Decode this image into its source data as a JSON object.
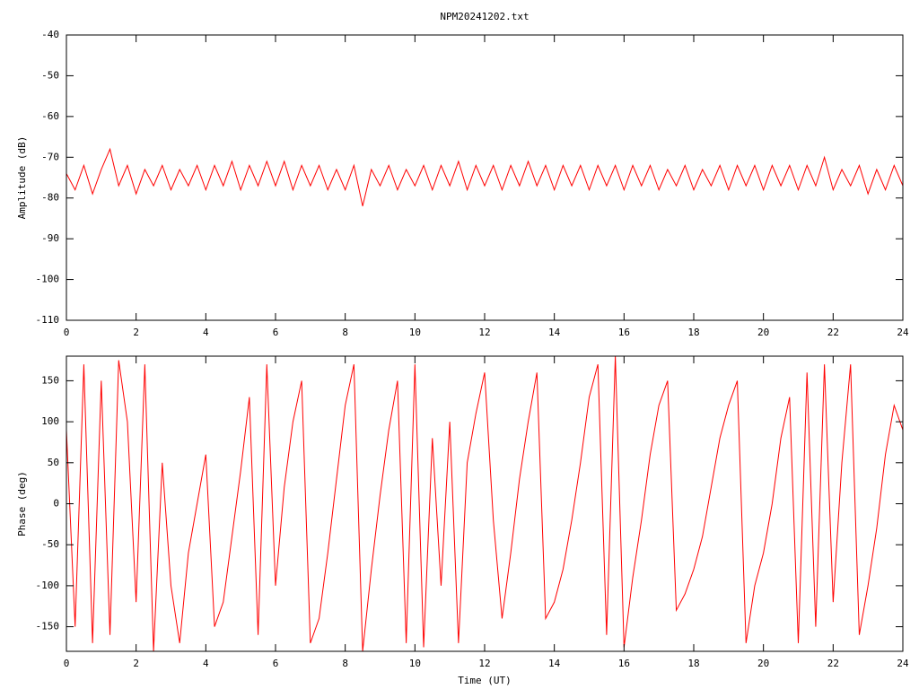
{
  "chart_data": [
    {
      "type": "line",
      "title": "NPM20241202.txt",
      "ylabel": "Amplitude (dB)",
      "color": "#ff0000",
      "xlim": [
        0,
        24
      ],
      "xticks": [
        0,
        2,
        4,
        6,
        8,
        10,
        12,
        14,
        16,
        18,
        20,
        22,
        24
      ],
      "ylim": [
        -110,
        -40
      ],
      "yticks": [
        -110,
        -100,
        -90,
        -80,
        -70,
        -60,
        -50,
        -40
      ],
      "x": [
        0,
        0.25,
        0.5,
        0.75,
        1,
        1.25,
        1.5,
        1.75,
        2,
        2.25,
        2.5,
        2.75,
        3,
        3.25,
        3.5,
        3.75,
        4,
        4.25,
        4.5,
        4.75,
        5,
        5.25,
        5.5,
        5.75,
        6,
        6.25,
        6.5,
        6.75,
        7,
        7.25,
        7.5,
        7.75,
        8,
        8.25,
        8.5,
        8.75,
        9,
        9.25,
        9.5,
        9.75,
        10,
        10.25,
        10.5,
        10.75,
        11,
        11.25,
        11.5,
        11.75,
        12,
        12.25,
        12.5,
        12.75,
        13,
        13.25,
        13.5,
        13.75,
        14,
        14.25,
        14.5,
        14.75,
        15,
        15.25,
        15.5,
        15.75,
        16,
        16.25,
        16.5,
        16.75,
        17,
        17.25,
        17.5,
        17.75,
        18,
        18.25,
        18.5,
        18.75,
        19,
        19.25,
        19.5,
        19.75,
        20,
        20.25,
        20.5,
        20.75,
        21,
        21.25,
        21.5,
        21.75,
        22,
        22.25,
        22.5,
        22.75,
        23,
        23.25,
        23.5,
        23.75,
        24
      ],
      "values": [
        -74,
        -78,
        -72,
        -79,
        -73,
        -68,
        -77,
        -72,
        -79,
        -73,
        -77,
        -72,
        -78,
        -73,
        -77,
        -72,
        -78,
        -72,
        -77,
        -71,
        -78,
        -72,
        -77,
        -71,
        -77,
        -71,
        -78,
        -72,
        -77,
        -72,
        -78,
        -73,
        -78,
        -72,
        -82,
        -73,
        -77,
        -72,
        -78,
        -73,
        -77,
        -72,
        -78,
        -72,
        -77,
        -71,
        -78,
        -72,
        -77,
        -72,
        -78,
        -72,
        -77,
        -71,
        -77,
        -72,
        -78,
        -72,
        -77,
        -72,
        -78,
        -72,
        -77,
        -72,
        -78,
        -72,
        -77,
        -72,
        -78,
        -73,
        -77,
        -72,
        -78,
        -73,
        -77,
        -72,
        -78,
        -72,
        -77,
        -72,
        -78,
        -72,
        -77,
        -72,
        -78,
        -72,
        -77,
        -70,
        -78,
        -73,
        -77,
        -72,
        -79,
        -73,
        -78,
        -72,
        -77
      ]
    },
    {
      "type": "line",
      "ylabel": "Phase (deg)",
      "xlabel": "Time (UT)",
      "color": "#ff0000",
      "xlim": [
        0,
        24
      ],
      "xticks": [
        0,
        2,
        4,
        6,
        8,
        10,
        12,
        14,
        16,
        18,
        20,
        22,
        24
      ],
      "ylim": [
        -180,
        180
      ],
      "yticks": [
        -150,
        -100,
        -50,
        0,
        50,
        100,
        150
      ],
      "x": [
        0,
        0.25,
        0.5,
        0.75,
        1,
        1.25,
        1.5,
        1.75,
        2,
        2.25,
        2.5,
        2.75,
        3,
        3.25,
        3.5,
        3.75,
        4,
        4.25,
        4.5,
        4.75,
        5,
        5.25,
        5.5,
        5.75,
        6,
        6.25,
        6.5,
        6.75,
        7,
        7.25,
        7.5,
        7.75,
        8,
        8.25,
        8.5,
        8.75,
        9,
        9.25,
        9.5,
        9.75,
        10,
        10.25,
        10.5,
        10.75,
        11,
        11.25,
        11.5,
        11.75,
        12,
        12.25,
        12.5,
        12.75,
        13,
        13.25,
        13.5,
        13.75,
        14,
        14.25,
        14.5,
        14.75,
        15,
        15.25,
        15.5,
        15.75,
        16,
        16.25,
        16.5,
        16.75,
        17,
        17.25,
        17.5,
        17.75,
        18,
        18.25,
        18.5,
        18.75,
        19,
        19.25,
        19.5,
        19.75,
        20,
        20.25,
        20.5,
        20.75,
        21,
        21.25,
        21.5,
        21.75,
        22,
        22.25,
        22.5,
        22.75,
        23,
        23.25,
        23.5,
        23.75,
        24
      ],
      "values": [
        90,
        -150,
        170,
        -170,
        150,
        -160,
        175,
        100,
        -120,
        170,
        -180,
        50,
        -100,
        -170,
        -60,
        0,
        60,
        -150,
        -120,
        -40,
        40,
        130,
        -160,
        170,
        -100,
        20,
        100,
        150,
        -170,
        -140,
        -60,
        30,
        120,
        170,
        -180,
        -80,
        10,
        90,
        150,
        -170,
        170,
        -175,
        80,
        -100,
        100,
        -170,
        50,
        110,
        160,
        -20,
        -140,
        -60,
        30,
        100,
        160,
        -140,
        -120,
        -80,
        -20,
        50,
        130,
        170,
        -160,
        180,
        -175,
        -90,
        -20,
        60,
        120,
        150,
        -130,
        -110,
        -80,
        -40,
        20,
        80,
        120,
        150,
        -170,
        -100,
        -60,
        0,
        80,
        130,
        -170,
        160,
        -150,
        170,
        -120,
        50,
        170,
        -160,
        -100,
        -30,
        60,
        120,
        90
      ]
    }
  ]
}
